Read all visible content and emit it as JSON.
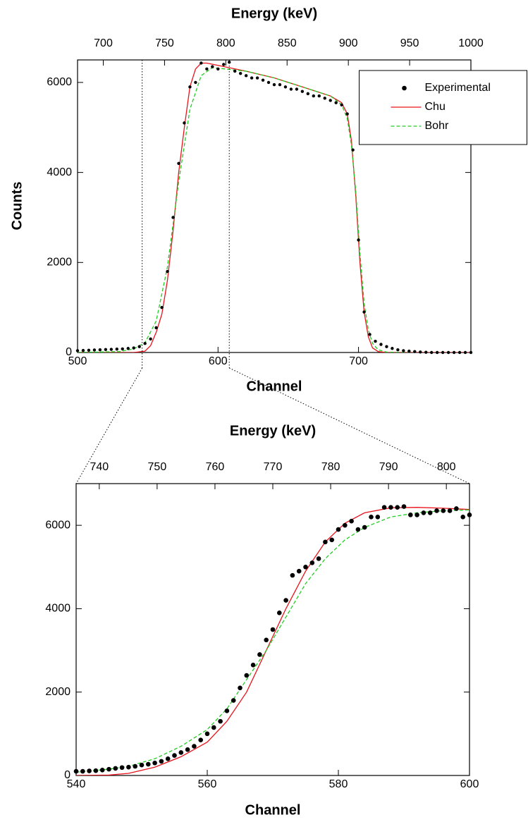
{
  "chart_data": [
    {
      "type": "scatter",
      "x2label": "Energy (keV)",
      "ylabel": "Counts",
      "xlabel": "Channel",
      "xlim": [
        500,
        780
      ],
      "xticks": [
        500,
        600,
        700
      ],
      "x2lim": [
        679,
        1000
      ],
      "x2ticks": [
        700,
        750,
        800,
        850,
        900,
        950,
        1000
      ],
      "ylim": [
        0,
        6500
      ],
      "yticks": [
        0,
        2000,
        4000,
        6000
      ],
      "vlines": [
        546,
        608
      ],
      "legend": "upper right",
      "series": [
        {
          "name": "Experimental",
          "type": "scatter",
          "color": "#000000",
          "x": [
            500,
            504,
            508,
            512,
            516,
            520,
            524,
            528,
            532,
            536,
            540,
            544,
            548,
            552,
            556,
            560,
            564,
            568,
            572,
            576,
            580,
            584,
            588,
            592,
            596,
            600,
            604,
            608,
            612,
            616,
            620,
            624,
            628,
            632,
            636,
            640,
            644,
            648,
            652,
            656,
            660,
            664,
            668,
            672,
            676,
            680,
            684,
            688,
            692,
            696,
            700,
            704,
            708,
            712,
            716,
            720,
            724,
            728,
            732,
            736,
            740,
            744,
            748,
            752,
            756,
            760,
            764,
            768,
            772,
            776,
            780
          ],
          "values": [
            40,
            45,
            50,
            55,
            60,
            65,
            70,
            75,
            80,
            90,
            100,
            130,
            200,
            300,
            550,
            1000,
            1800,
            3000,
            4200,
            5100,
            5900,
            6000,
            6430,
            6300,
            6350,
            6300,
            6400,
            6450,
            6250,
            6200,
            6150,
            6100,
            6100,
            6050,
            6000,
            5950,
            5950,
            5900,
            5850,
            5850,
            5800,
            5750,
            5700,
            5700,
            5650,
            5600,
            5550,
            5500,
            5300,
            4500,
            2500,
            900,
            400,
            250,
            180,
            130,
            90,
            60,
            40,
            30,
            20,
            10,
            5,
            0,
            0,
            0,
            0,
            0,
            0,
            0,
            0
          ]
        },
        {
          "name": "Chu",
          "type": "line",
          "color": "#e8141c",
          "dash": false,
          "x": [
            500,
            540,
            548,
            552,
            556,
            560,
            564,
            568,
            572,
            576,
            580,
            584,
            588,
            592,
            600,
            620,
            640,
            660,
            680,
            688,
            692,
            695,
            698,
            701,
            704,
            707,
            710,
            714,
            720,
            780
          ],
          "values": [
            0,
            0,
            30,
            150,
            450,
            850,
            1600,
            2700,
            4000,
            5000,
            5900,
            6300,
            6430,
            6430,
            6380,
            6250,
            6100,
            5900,
            5700,
            5550,
            5300,
            4700,
            3500,
            2000,
            900,
            350,
            100,
            20,
            0,
            0
          ]
        },
        {
          "name": "Bohr",
          "type": "line",
          "color": "#22cc22",
          "dash": true,
          "x": [
            500,
            530,
            540,
            548,
            556,
            564,
            572,
            580,
            588,
            596,
            620,
            640,
            660,
            680,
            688,
            692,
            695,
            698,
            701,
            704,
            707,
            710,
            714,
            720,
            730,
            780
          ],
          "values": [
            0,
            20,
            80,
            220,
            700,
            1900,
            3800,
            5400,
            6150,
            6330,
            6250,
            6100,
            5900,
            5700,
            5500,
            5200,
            4600,
            3600,
            2200,
            1100,
            500,
            200,
            60,
            10,
            0,
            0
          ]
        }
      ]
    },
    {
      "type": "scatter",
      "x2label": "Energy (keV)",
      "xlabel": "Channel",
      "xlim": [
        540,
        600
      ],
      "xticks": [
        540,
        560,
        580,
        600
      ],
      "x2lim": [
        736,
        804
      ],
      "x2ticks": [
        740,
        750,
        760,
        770,
        780,
        790,
        800
      ],
      "ylim": [
        0,
        7000
      ],
      "yticks": [
        0,
        2000,
        4000,
        6000
      ],
      "series": [
        {
          "name": "Experimental",
          "type": "scatter",
          "color": "#000000",
          "x": [
            540,
            541,
            542,
            543,
            544,
            545,
            546,
            547,
            548,
            549,
            550,
            551,
            552,
            553,
            554,
            555,
            556,
            557,
            558,
            559,
            560,
            561,
            562,
            563,
            564,
            565,
            566,
            567,
            568,
            569,
            570,
            571,
            572,
            573,
            574,
            575,
            576,
            577,
            578,
            579,
            580,
            581,
            582,
            583,
            584,
            585,
            586,
            587,
            588,
            589,
            590,
            591,
            592,
            593,
            594,
            595,
            596,
            597,
            598,
            599,
            600
          ],
          "values": [
            100,
            100,
            110,
            115,
            130,
            150,
            170,
            190,
            200,
            220,
            250,
            270,
            300,
            340,
            400,
            480,
            550,
            620,
            700,
            850,
            1000,
            1150,
            1300,
            1550,
            1800,
            2100,
            2400,
            2650,
            2900,
            3250,
            3500,
            3900,
            4200,
            4800,
            4900,
            5000,
            5100,
            5200,
            5600,
            5650,
            5900,
            6000,
            6100,
            5900,
            5950,
            6200,
            6200,
            6430,
            6430,
            6430,
            6450,
            6250,
            6250,
            6300,
            6300,
            6350,
            6350,
            6350,
            6400,
            6200,
            6250
          ]
        },
        {
          "name": "Chu",
          "type": "line",
          "color": "#e8141c",
          "dash": false,
          "x": [
            540,
            545,
            548,
            552,
            556,
            560,
            563,
            566,
            569,
            572,
            575,
            578,
            581,
            584,
            588,
            592,
            596,
            600
          ],
          "values": [
            0,
            10,
            50,
            200,
            450,
            800,
            1300,
            2000,
            3000,
            4000,
            4900,
            5600,
            6050,
            6300,
            6420,
            6430,
            6410,
            6380
          ]
        },
        {
          "name": "Bohr",
          "type": "line",
          "color": "#22cc22",
          "dash": true,
          "x": [
            540,
            545,
            548,
            552,
            556,
            560,
            563,
            566,
            569,
            572,
            575,
            578,
            581,
            584,
            588,
            592,
            596,
            600
          ],
          "values": [
            80,
            150,
            220,
            400,
            700,
            1100,
            1600,
            2300,
            3000,
            3800,
            4600,
            5200,
            5650,
            5950,
            6200,
            6300,
            6350,
            6370
          ]
        }
      ]
    }
  ]
}
